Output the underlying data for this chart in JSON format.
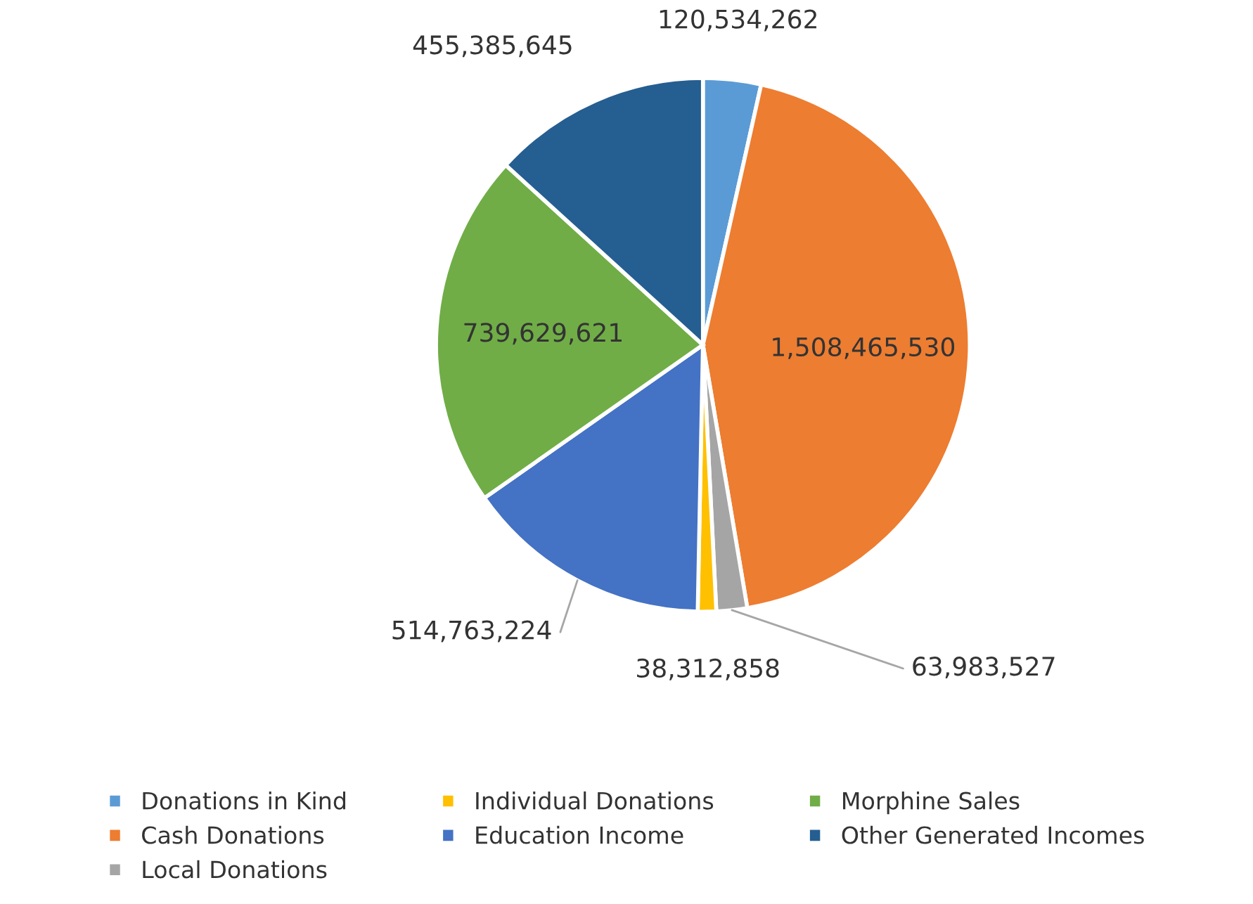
{
  "chart_data": {
    "type": "pie",
    "categories": [
      "Donations in Kind",
      "Cash Donations",
      "Local Donations",
      "Individual Donations",
      "Education Income",
      "Morphine Sales",
      "Other Generated Incomes"
    ],
    "values": [
      120534262,
      1508465530,
      63983527,
      38312858,
      514763224,
      739629621,
      455385645
    ],
    "value_labels": [
      "120,534,262",
      "1,508,465,530",
      "63,983,527",
      "38,312,858",
      "514,763,224",
      "739,629,621",
      "455,385,645"
    ],
    "colors": [
      "#5b9bd5",
      "#ed7d31",
      "#a5a5a5",
      "#ffc000",
      "#4472c4",
      "#70ad47",
      "#255e91"
    ],
    "legend": "bottom"
  }
}
